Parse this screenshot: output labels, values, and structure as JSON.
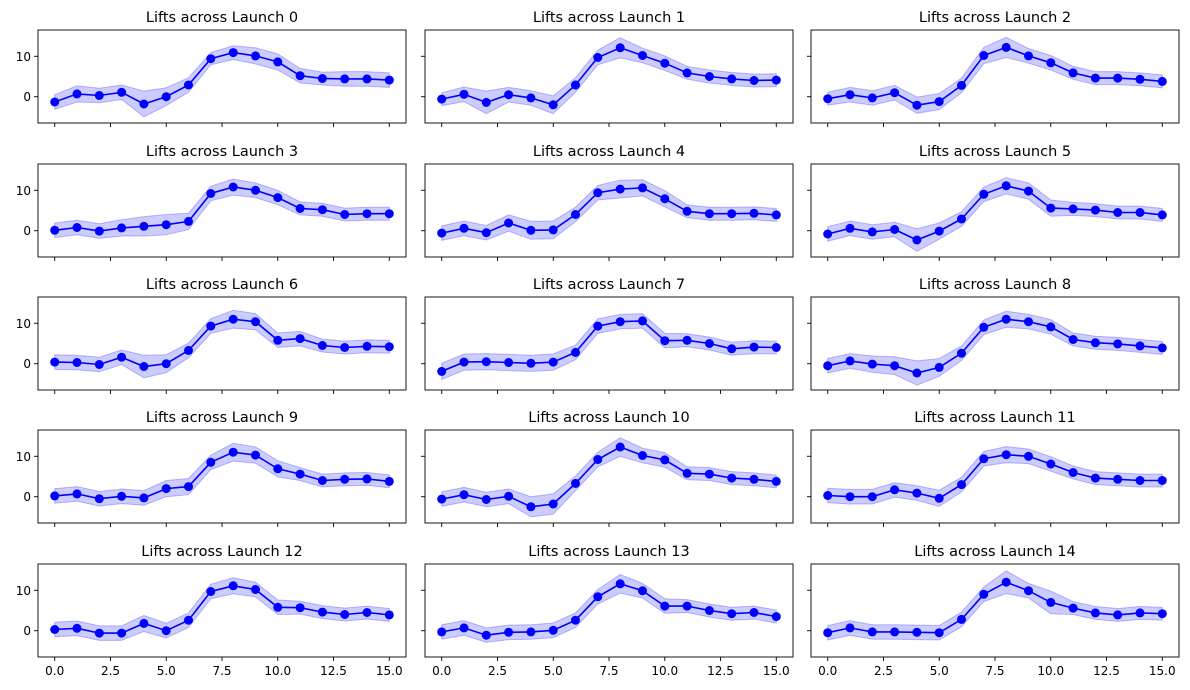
{
  "colors": {
    "line": "#0000ff",
    "band": "#0000ff",
    "band_opacity": 0.2,
    "axes": "#000000",
    "background": "#ffffff"
  },
  "chart_data": [
    {
      "type": "line",
      "title": "Lifts across Launch 0",
      "x": [
        0,
        1,
        2,
        3,
        4,
        5,
        6,
        7,
        8,
        9,
        10,
        11,
        12,
        13,
        14,
        15
      ],
      "values": [
        -1.3,
        0.7,
        0.3,
        1.1,
        -1.8,
        0.0,
        2.9,
        9.4,
        10.9,
        10.1,
        8.6,
        5.2,
        4.5,
        4.4,
        4.4,
        4.1
      ],
      "band_half_width": [
        1.8,
        2.0,
        1.8,
        1.8,
        3.2,
        2.2,
        1.8,
        1.5,
        1.7,
        2.0,
        2.0,
        1.8,
        1.6,
        1.8,
        1.8,
        1.8
      ],
      "xlim": [
        -0.75,
        15.75
      ],
      "ylim": [
        -6.5,
        16.5
      ],
      "xticks": [
        "0.0",
        "2.5",
        "5.0",
        "7.5",
        "10.0",
        "12.5",
        "15.0"
      ],
      "yticks": [
        "0",
        "10"
      ],
      "grid": false
    },
    {
      "type": "line",
      "title": "Lifts across Launch 1",
      "x": [
        0,
        1,
        2,
        3,
        4,
        5,
        6,
        7,
        8,
        9,
        10,
        11,
        12,
        13,
        14,
        15
      ],
      "values": [
        -0.6,
        0.6,
        -1.4,
        0.5,
        -0.3,
        -2.0,
        2.9,
        9.7,
        12.1,
        10.2,
        8.3,
        5.9,
        5.0,
        4.4,
        4.0,
        4.1
      ],
      "band_half_width": [
        1.6,
        1.8,
        2.8,
        1.8,
        1.8,
        2.2,
        1.8,
        1.8,
        2.5,
        1.8,
        1.8,
        1.6,
        1.6,
        1.6,
        1.6,
        1.6
      ],
      "xlim": [
        -0.75,
        15.75
      ],
      "ylim": [
        -6.5,
        16.5
      ],
      "xticks": [
        "0.0",
        "2.5",
        "5.0",
        "7.5",
        "10.0",
        "12.5",
        "15.0"
      ],
      "yticks": [
        "0",
        "10"
      ],
      "grid": false
    },
    {
      "type": "line",
      "title": "Lifts across Launch 2",
      "x": [
        0,
        1,
        2,
        3,
        4,
        5,
        6,
        7,
        8,
        9,
        10,
        11,
        12,
        13,
        14,
        15
      ],
      "values": [
        -0.5,
        0.5,
        -0.3,
        1.0,
        -2.1,
        -1.2,
        2.8,
        10.2,
        12.2,
        10.1,
        8.4,
        5.9,
        4.6,
        4.6,
        4.3,
        3.8
      ],
      "band_half_width": [
        1.6,
        1.8,
        1.8,
        1.8,
        2.0,
        2.0,
        1.8,
        2.0,
        2.5,
        1.8,
        1.8,
        1.6,
        1.6,
        1.6,
        1.6,
        1.6
      ],
      "xlim": [
        -0.75,
        15.75
      ],
      "ylim": [
        -6.5,
        16.5
      ],
      "xticks": [
        "0.0",
        "2.5",
        "5.0",
        "7.5",
        "10.0",
        "12.5",
        "15.0"
      ],
      "yticks": [
        "0",
        "10"
      ],
      "grid": false
    },
    {
      "type": "line",
      "title": "Lifts across Launch 3",
      "x": [
        0,
        1,
        2,
        3,
        4,
        5,
        6,
        7,
        8,
        9,
        10,
        11,
        12,
        13,
        14,
        15
      ],
      "values": [
        0.1,
        0.8,
        -0.1,
        0.7,
        1.1,
        1.5,
        2.3,
        9.2,
        10.8,
        10.0,
        8.2,
        5.5,
        5.2,
        4.0,
        4.2,
        4.2
      ],
      "band_half_width": [
        1.8,
        1.8,
        1.8,
        2.0,
        2.4,
        2.5,
        2.0,
        1.8,
        2.0,
        1.8,
        1.8,
        1.6,
        1.6,
        1.6,
        1.6,
        1.6
      ],
      "xlim": [
        -0.75,
        15.75
      ],
      "ylim": [
        -6.5,
        16.5
      ],
      "xticks": [
        "0.0",
        "2.5",
        "5.0",
        "7.5",
        "10.0",
        "12.5",
        "15.0"
      ],
      "yticks": [
        "0",
        "10"
      ],
      "grid": false
    },
    {
      "type": "line",
      "title": "Lifts across Launch 4",
      "x": [
        0,
        1,
        2,
        3,
        4,
        5,
        6,
        7,
        8,
        9,
        10,
        11,
        12,
        13,
        14,
        15
      ],
      "values": [
        -0.6,
        0.6,
        -0.5,
        1.9,
        0.1,
        0.2,
        4.0,
        9.4,
        10.3,
        10.6,
        7.9,
        4.8,
        4.2,
        4.2,
        4.3,
        3.9
      ],
      "band_half_width": [
        1.8,
        1.8,
        1.8,
        2.0,
        2.2,
        2.2,
        1.8,
        1.8,
        2.2,
        2.0,
        2.0,
        1.6,
        1.6,
        1.6,
        1.6,
        1.6
      ],
      "xlim": [
        -0.75,
        15.75
      ],
      "ylim": [
        -6.5,
        16.5
      ],
      "xticks": [
        "0.0",
        "2.5",
        "5.0",
        "7.5",
        "10.0",
        "12.5",
        "15.0"
      ],
      "yticks": [
        "0",
        "10"
      ],
      "grid": false
    },
    {
      "type": "line",
      "title": "Lifts across Launch 5",
      "x": [
        0,
        1,
        2,
        3,
        4,
        5,
        6,
        7,
        8,
        9,
        10,
        11,
        12,
        13,
        14,
        15
      ],
      "values": [
        -0.8,
        0.6,
        -0.3,
        0.3,
        -2.3,
        -0.1,
        2.9,
        9.0,
        11.1,
        9.8,
        5.6,
        5.4,
        5.1,
        4.5,
        4.5,
        3.9
      ],
      "band_half_width": [
        1.8,
        1.8,
        1.8,
        1.8,
        2.8,
        2.0,
        1.8,
        1.8,
        2.0,
        2.0,
        2.0,
        1.6,
        1.6,
        1.6,
        1.6,
        1.6
      ],
      "xlim": [
        -0.75,
        15.75
      ],
      "ylim": [
        -6.5,
        16.5
      ],
      "xticks": [
        "0.0",
        "2.5",
        "5.0",
        "7.5",
        "10.0",
        "12.5",
        "15.0"
      ],
      "yticks": [
        "0",
        "10"
      ],
      "grid": false
    },
    {
      "type": "line",
      "title": "Lifts across Launch 6",
      "x": [
        0,
        1,
        2,
        3,
        4,
        5,
        6,
        7,
        8,
        9,
        10,
        11,
        12,
        13,
        14,
        15
      ],
      "values": [
        0.4,
        0.3,
        -0.2,
        1.6,
        -0.7,
        0.0,
        3.3,
        9.3,
        11.0,
        10.4,
        5.8,
        6.2,
        4.5,
        4.0,
        4.3,
        4.2
      ],
      "band_half_width": [
        1.8,
        1.8,
        1.8,
        1.8,
        2.8,
        2.2,
        1.8,
        1.8,
        2.2,
        2.0,
        1.8,
        1.8,
        1.6,
        1.6,
        1.6,
        1.6
      ],
      "xlim": [
        -0.75,
        15.75
      ],
      "ylim": [
        -6.5,
        16.5
      ],
      "xticks": [
        "0.0",
        "2.5",
        "5.0",
        "7.5",
        "10.0",
        "12.5",
        "15.0"
      ],
      "yticks": [
        "0",
        "10"
      ],
      "grid": false
    },
    {
      "type": "line",
      "title": "Lifts across Launch 7",
      "x": [
        0,
        1,
        2,
        3,
        4,
        5,
        6,
        7,
        8,
        9,
        10,
        11,
        12,
        13,
        14,
        15
      ],
      "values": [
        -1.9,
        0.4,
        0.5,
        0.3,
        0.1,
        0.4,
        2.8,
        9.3,
        10.4,
        10.6,
        5.7,
        5.8,
        5.0,
        3.7,
        4.1,
        4.0
      ],
      "band_half_width": [
        2.0,
        2.0,
        2.0,
        2.0,
        2.0,
        2.0,
        1.8,
        1.8,
        1.8,
        1.8,
        1.8,
        1.6,
        1.6,
        1.6,
        1.6,
        1.6
      ],
      "xlim": [
        -0.75,
        15.75
      ],
      "ylim": [
        -6.5,
        16.5
      ],
      "xticks": [
        "0.0",
        "2.5",
        "5.0",
        "7.5",
        "10.0",
        "12.5",
        "15.0"
      ],
      "yticks": [
        "0",
        "10"
      ],
      "grid": false
    },
    {
      "type": "line",
      "title": "Lifts across Launch 8",
      "x": [
        0,
        1,
        2,
        3,
        4,
        5,
        6,
        7,
        8,
        9,
        10,
        11,
        12,
        13,
        14,
        15
      ],
      "values": [
        -0.5,
        0.7,
        -0.1,
        -0.5,
        -2.3,
        -0.9,
        2.6,
        9.0,
        11.0,
        10.4,
        9.1,
        6.0,
        5.2,
        4.9,
        4.4,
        3.9
      ],
      "band_half_width": [
        1.8,
        1.8,
        2.0,
        2.2,
        3.0,
        2.2,
        1.8,
        1.8,
        2.0,
        1.8,
        1.8,
        1.6,
        1.6,
        1.6,
        1.6,
        1.6
      ],
      "xlim": [
        -0.75,
        15.75
      ],
      "ylim": [
        -6.5,
        16.5
      ],
      "xticks": [
        "0.0",
        "2.5",
        "5.0",
        "7.5",
        "10.0",
        "12.5",
        "15.0"
      ],
      "yticks": [
        "0",
        "10"
      ],
      "grid": false
    },
    {
      "type": "line",
      "title": "Lifts across Launch 9",
      "x": [
        0,
        1,
        2,
        3,
        4,
        5,
        6,
        7,
        8,
        9,
        10,
        11,
        12,
        13,
        14,
        15
      ],
      "values": [
        0.2,
        0.7,
        -0.5,
        0.1,
        -0.3,
        2.0,
        2.5,
        8.5,
        11.0,
        10.3,
        6.9,
        5.6,
        4.0,
        4.3,
        4.4,
        3.8
      ],
      "band_half_width": [
        1.8,
        1.8,
        1.8,
        1.8,
        1.8,
        2.0,
        2.0,
        1.8,
        2.2,
        2.0,
        2.0,
        1.6,
        1.6,
        1.6,
        1.6,
        1.6
      ],
      "xlim": [
        -0.75,
        15.75
      ],
      "ylim": [
        -6.5,
        16.5
      ],
      "xticks": [
        "0.0",
        "2.5",
        "5.0",
        "7.5",
        "10.0",
        "12.5",
        "15.0"
      ],
      "yticks": [
        "0",
        "10"
      ],
      "grid": false
    },
    {
      "type": "line",
      "title": "Lifts across Launch 10",
      "x": [
        0,
        1,
        2,
        3,
        4,
        5,
        6,
        7,
        8,
        9,
        10,
        11,
        12,
        13,
        14,
        15
      ],
      "values": [
        -0.6,
        0.5,
        -0.7,
        0.1,
        -2.5,
        -1.8,
        3.3,
        9.2,
        12.3,
        10.2,
        9.1,
        5.8,
        5.6,
        4.6,
        4.3,
        3.8
      ],
      "band_half_width": [
        1.8,
        1.8,
        1.8,
        1.8,
        2.5,
        2.5,
        1.8,
        1.8,
        2.3,
        1.8,
        1.8,
        1.6,
        1.6,
        1.6,
        1.6,
        1.6
      ],
      "xlim": [
        -0.75,
        15.75
      ],
      "ylim": [
        -6.5,
        16.5
      ],
      "xticks": [
        "0.0",
        "2.5",
        "5.0",
        "7.5",
        "10.0",
        "12.5",
        "15.0"
      ],
      "yticks": [
        "0",
        "10"
      ],
      "grid": false
    },
    {
      "type": "line",
      "title": "Lifts across Launch 11",
      "x": [
        0,
        1,
        2,
        3,
        4,
        5,
        6,
        7,
        8,
        9,
        10,
        11,
        12,
        13,
        14,
        15
      ],
      "values": [
        0.3,
        0.0,
        0.0,
        1.7,
        0.9,
        -0.4,
        3.0,
        9.4,
        10.4,
        10.0,
        8.1,
        6.0,
        4.6,
        4.3,
        4.0,
        4.0
      ],
      "band_half_width": [
        1.8,
        1.8,
        1.8,
        1.8,
        1.8,
        2.0,
        1.8,
        1.8,
        2.0,
        1.8,
        1.8,
        1.6,
        1.6,
        1.6,
        1.6,
        1.6
      ],
      "xlim": [
        -0.75,
        15.75
      ],
      "ylim": [
        -6.5,
        16.5
      ],
      "xticks": [
        "0.0",
        "2.5",
        "5.0",
        "7.5",
        "10.0",
        "12.5",
        "15.0"
      ],
      "yticks": [
        "0",
        "10"
      ],
      "grid": false
    },
    {
      "type": "line",
      "title": "Lifts across Launch 12",
      "x": [
        0,
        1,
        2,
        3,
        4,
        5,
        6,
        7,
        8,
        9,
        10,
        11,
        12,
        13,
        14,
        15
      ],
      "values": [
        0.3,
        0.6,
        -0.6,
        -0.6,
        1.8,
        0.0,
        2.6,
        9.7,
        11.1,
        10.2,
        5.8,
        5.7,
        4.6,
        4.0,
        4.5,
        3.9
      ],
      "band_half_width": [
        1.8,
        1.8,
        1.8,
        1.8,
        2.0,
        1.8,
        1.8,
        1.8,
        2.0,
        1.8,
        1.8,
        1.6,
        1.6,
        1.6,
        1.6,
        1.6
      ],
      "xlim": [
        -0.75,
        15.75
      ],
      "ylim": [
        -6.5,
        16.5
      ],
      "xticks": [
        "0.0",
        "2.5",
        "5.0",
        "7.5",
        "10.0",
        "12.5",
        "15.0"
      ],
      "yticks": [
        "0",
        "10"
      ],
      "grid": false
    },
    {
      "type": "line",
      "title": "Lifts across Launch 13",
      "x": [
        0,
        1,
        2,
        3,
        4,
        5,
        6,
        7,
        8,
        9,
        10,
        11,
        12,
        13,
        14,
        15
      ],
      "values": [
        -0.3,
        0.7,
        -1.1,
        -0.4,
        -0.3,
        0.1,
        2.6,
        8.4,
        11.6,
        9.9,
        6.1,
        6.1,
        5.0,
        4.2,
        4.5,
        3.5
      ],
      "band_half_width": [
        1.8,
        1.8,
        1.8,
        1.8,
        1.8,
        1.8,
        1.8,
        1.8,
        2.3,
        1.8,
        1.8,
        1.6,
        1.6,
        1.6,
        1.6,
        1.6
      ],
      "xlim": [
        -0.75,
        15.75
      ],
      "ylim": [
        -6.5,
        16.5
      ],
      "xticks": [
        "0.0",
        "2.5",
        "5.0",
        "7.5",
        "10.0",
        "12.5",
        "15.0"
      ],
      "yticks": [
        "0",
        "10"
      ],
      "grid": false
    },
    {
      "type": "line",
      "title": "Lifts across Launch 14",
      "x": [
        0,
        1,
        2,
        3,
        4,
        5,
        6,
        7,
        8,
        9,
        10,
        11,
        12,
        13,
        14,
        15
      ],
      "values": [
        -0.5,
        0.7,
        -0.3,
        -0.3,
        -0.4,
        -0.5,
        2.8,
        9.0,
        12.0,
        9.9,
        7.0,
        5.6,
        4.4,
        3.9,
        4.4,
        4.2
      ],
      "band_half_width": [
        1.8,
        1.8,
        1.8,
        1.8,
        1.8,
        1.8,
        1.8,
        1.8,
        2.8,
        1.8,
        2.8,
        1.6,
        1.6,
        1.6,
        1.6,
        1.6
      ],
      "xlim": [
        -0.75,
        15.75
      ],
      "ylim": [
        -6.5,
        16.5
      ],
      "xticks": [
        "0.0",
        "2.5",
        "5.0",
        "7.5",
        "10.0",
        "12.5",
        "15.0"
      ],
      "yticks": [
        "0",
        "10"
      ],
      "grid": false
    }
  ]
}
